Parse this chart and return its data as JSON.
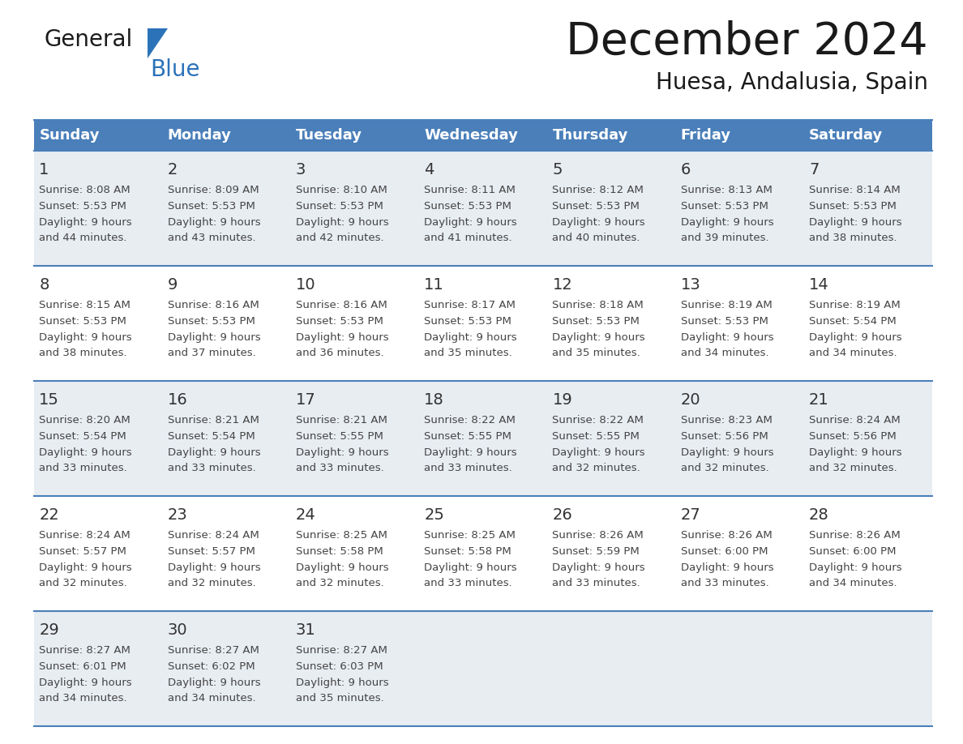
{
  "title": "December 2024",
  "subtitle": "Huesa, Andalusia, Spain",
  "header_color": "#4a7fba",
  "header_text_color": "#FFFFFF",
  "grid_line_color": "#4a7fba",
  "text_color": "#444444",
  "day_number_color": "#333333",
  "day_names": [
    "Sunday",
    "Monday",
    "Tuesday",
    "Wednesday",
    "Thursday",
    "Friday",
    "Saturday"
  ],
  "logo_general_color": "#1a1a1a",
  "logo_blue_color": "#2b72b8",
  "logo_triangle_color": "#2b72b8",
  "calendar_data": [
    [
      {
        "day": "1",
        "sunrise": "8:08 AM",
        "sunset": "5:53 PM",
        "daylight_h": "9 hours",
        "daylight_m": "and 44 minutes."
      },
      {
        "day": "2",
        "sunrise": "8:09 AM",
        "sunset": "5:53 PM",
        "daylight_h": "9 hours",
        "daylight_m": "and 43 minutes."
      },
      {
        "day": "3",
        "sunrise": "8:10 AM",
        "sunset": "5:53 PM",
        "daylight_h": "9 hours",
        "daylight_m": "and 42 minutes."
      },
      {
        "day": "4",
        "sunrise": "8:11 AM",
        "sunset": "5:53 PM",
        "daylight_h": "9 hours",
        "daylight_m": "and 41 minutes."
      },
      {
        "day": "5",
        "sunrise": "8:12 AM",
        "sunset": "5:53 PM",
        "daylight_h": "9 hours",
        "daylight_m": "and 40 minutes."
      },
      {
        "day": "6",
        "sunrise": "8:13 AM",
        "sunset": "5:53 PM",
        "daylight_h": "9 hours",
        "daylight_m": "and 39 minutes."
      },
      {
        "day": "7",
        "sunrise": "8:14 AM",
        "sunset": "5:53 PM",
        "daylight_h": "9 hours",
        "daylight_m": "and 38 minutes."
      }
    ],
    [
      {
        "day": "8",
        "sunrise": "8:15 AM",
        "sunset": "5:53 PM",
        "daylight_h": "9 hours",
        "daylight_m": "and 38 minutes."
      },
      {
        "day": "9",
        "sunrise": "8:16 AM",
        "sunset": "5:53 PM",
        "daylight_h": "9 hours",
        "daylight_m": "and 37 minutes."
      },
      {
        "day": "10",
        "sunrise": "8:16 AM",
        "sunset": "5:53 PM",
        "daylight_h": "9 hours",
        "daylight_m": "and 36 minutes."
      },
      {
        "day": "11",
        "sunrise": "8:17 AM",
        "sunset": "5:53 PM",
        "daylight_h": "9 hours",
        "daylight_m": "and 35 minutes."
      },
      {
        "day": "12",
        "sunrise": "8:18 AM",
        "sunset": "5:53 PM",
        "daylight_h": "9 hours",
        "daylight_m": "and 35 minutes."
      },
      {
        "day": "13",
        "sunrise": "8:19 AM",
        "sunset": "5:53 PM",
        "daylight_h": "9 hours",
        "daylight_m": "and 34 minutes."
      },
      {
        "day": "14",
        "sunrise": "8:19 AM",
        "sunset": "5:54 PM",
        "daylight_h": "9 hours",
        "daylight_m": "and 34 minutes."
      }
    ],
    [
      {
        "day": "15",
        "sunrise": "8:20 AM",
        "sunset": "5:54 PM",
        "daylight_h": "9 hours",
        "daylight_m": "and 33 minutes."
      },
      {
        "day": "16",
        "sunrise": "8:21 AM",
        "sunset": "5:54 PM",
        "daylight_h": "9 hours",
        "daylight_m": "and 33 minutes."
      },
      {
        "day": "17",
        "sunrise": "8:21 AM",
        "sunset": "5:55 PM",
        "daylight_h": "9 hours",
        "daylight_m": "and 33 minutes."
      },
      {
        "day": "18",
        "sunrise": "8:22 AM",
        "sunset": "5:55 PM",
        "daylight_h": "9 hours",
        "daylight_m": "and 33 minutes."
      },
      {
        "day": "19",
        "sunrise": "8:22 AM",
        "sunset": "5:55 PM",
        "daylight_h": "9 hours",
        "daylight_m": "and 32 minutes."
      },
      {
        "day": "20",
        "sunrise": "8:23 AM",
        "sunset": "5:56 PM",
        "daylight_h": "9 hours",
        "daylight_m": "and 32 minutes."
      },
      {
        "day": "21",
        "sunrise": "8:24 AM",
        "sunset": "5:56 PM",
        "daylight_h": "9 hours",
        "daylight_m": "and 32 minutes."
      }
    ],
    [
      {
        "day": "22",
        "sunrise": "8:24 AM",
        "sunset": "5:57 PM",
        "daylight_h": "9 hours",
        "daylight_m": "and 32 minutes."
      },
      {
        "day": "23",
        "sunrise": "8:24 AM",
        "sunset": "5:57 PM",
        "daylight_h": "9 hours",
        "daylight_m": "and 32 minutes."
      },
      {
        "day": "24",
        "sunrise": "8:25 AM",
        "sunset": "5:58 PM",
        "daylight_h": "9 hours",
        "daylight_m": "and 32 minutes."
      },
      {
        "day": "25",
        "sunrise": "8:25 AM",
        "sunset": "5:58 PM",
        "daylight_h": "9 hours",
        "daylight_m": "and 33 minutes."
      },
      {
        "day": "26",
        "sunrise": "8:26 AM",
        "sunset": "5:59 PM",
        "daylight_h": "9 hours",
        "daylight_m": "and 33 minutes."
      },
      {
        "day": "27",
        "sunrise": "8:26 AM",
        "sunset": "6:00 PM",
        "daylight_h": "9 hours",
        "daylight_m": "and 33 minutes."
      },
      {
        "day": "28",
        "sunrise": "8:26 AM",
        "sunset": "6:00 PM",
        "daylight_h": "9 hours",
        "daylight_m": "and 34 minutes."
      }
    ],
    [
      {
        "day": "29",
        "sunrise": "8:27 AM",
        "sunset": "6:01 PM",
        "daylight_h": "9 hours",
        "daylight_m": "and 34 minutes."
      },
      {
        "day": "30",
        "sunrise": "8:27 AM",
        "sunset": "6:02 PM",
        "daylight_h": "9 hours",
        "daylight_m": "and 34 minutes."
      },
      {
        "day": "31",
        "sunrise": "8:27 AM",
        "sunset": "6:03 PM",
        "daylight_h": "9 hours",
        "daylight_m": "and 35 minutes."
      },
      null,
      null,
      null,
      null
    ]
  ]
}
